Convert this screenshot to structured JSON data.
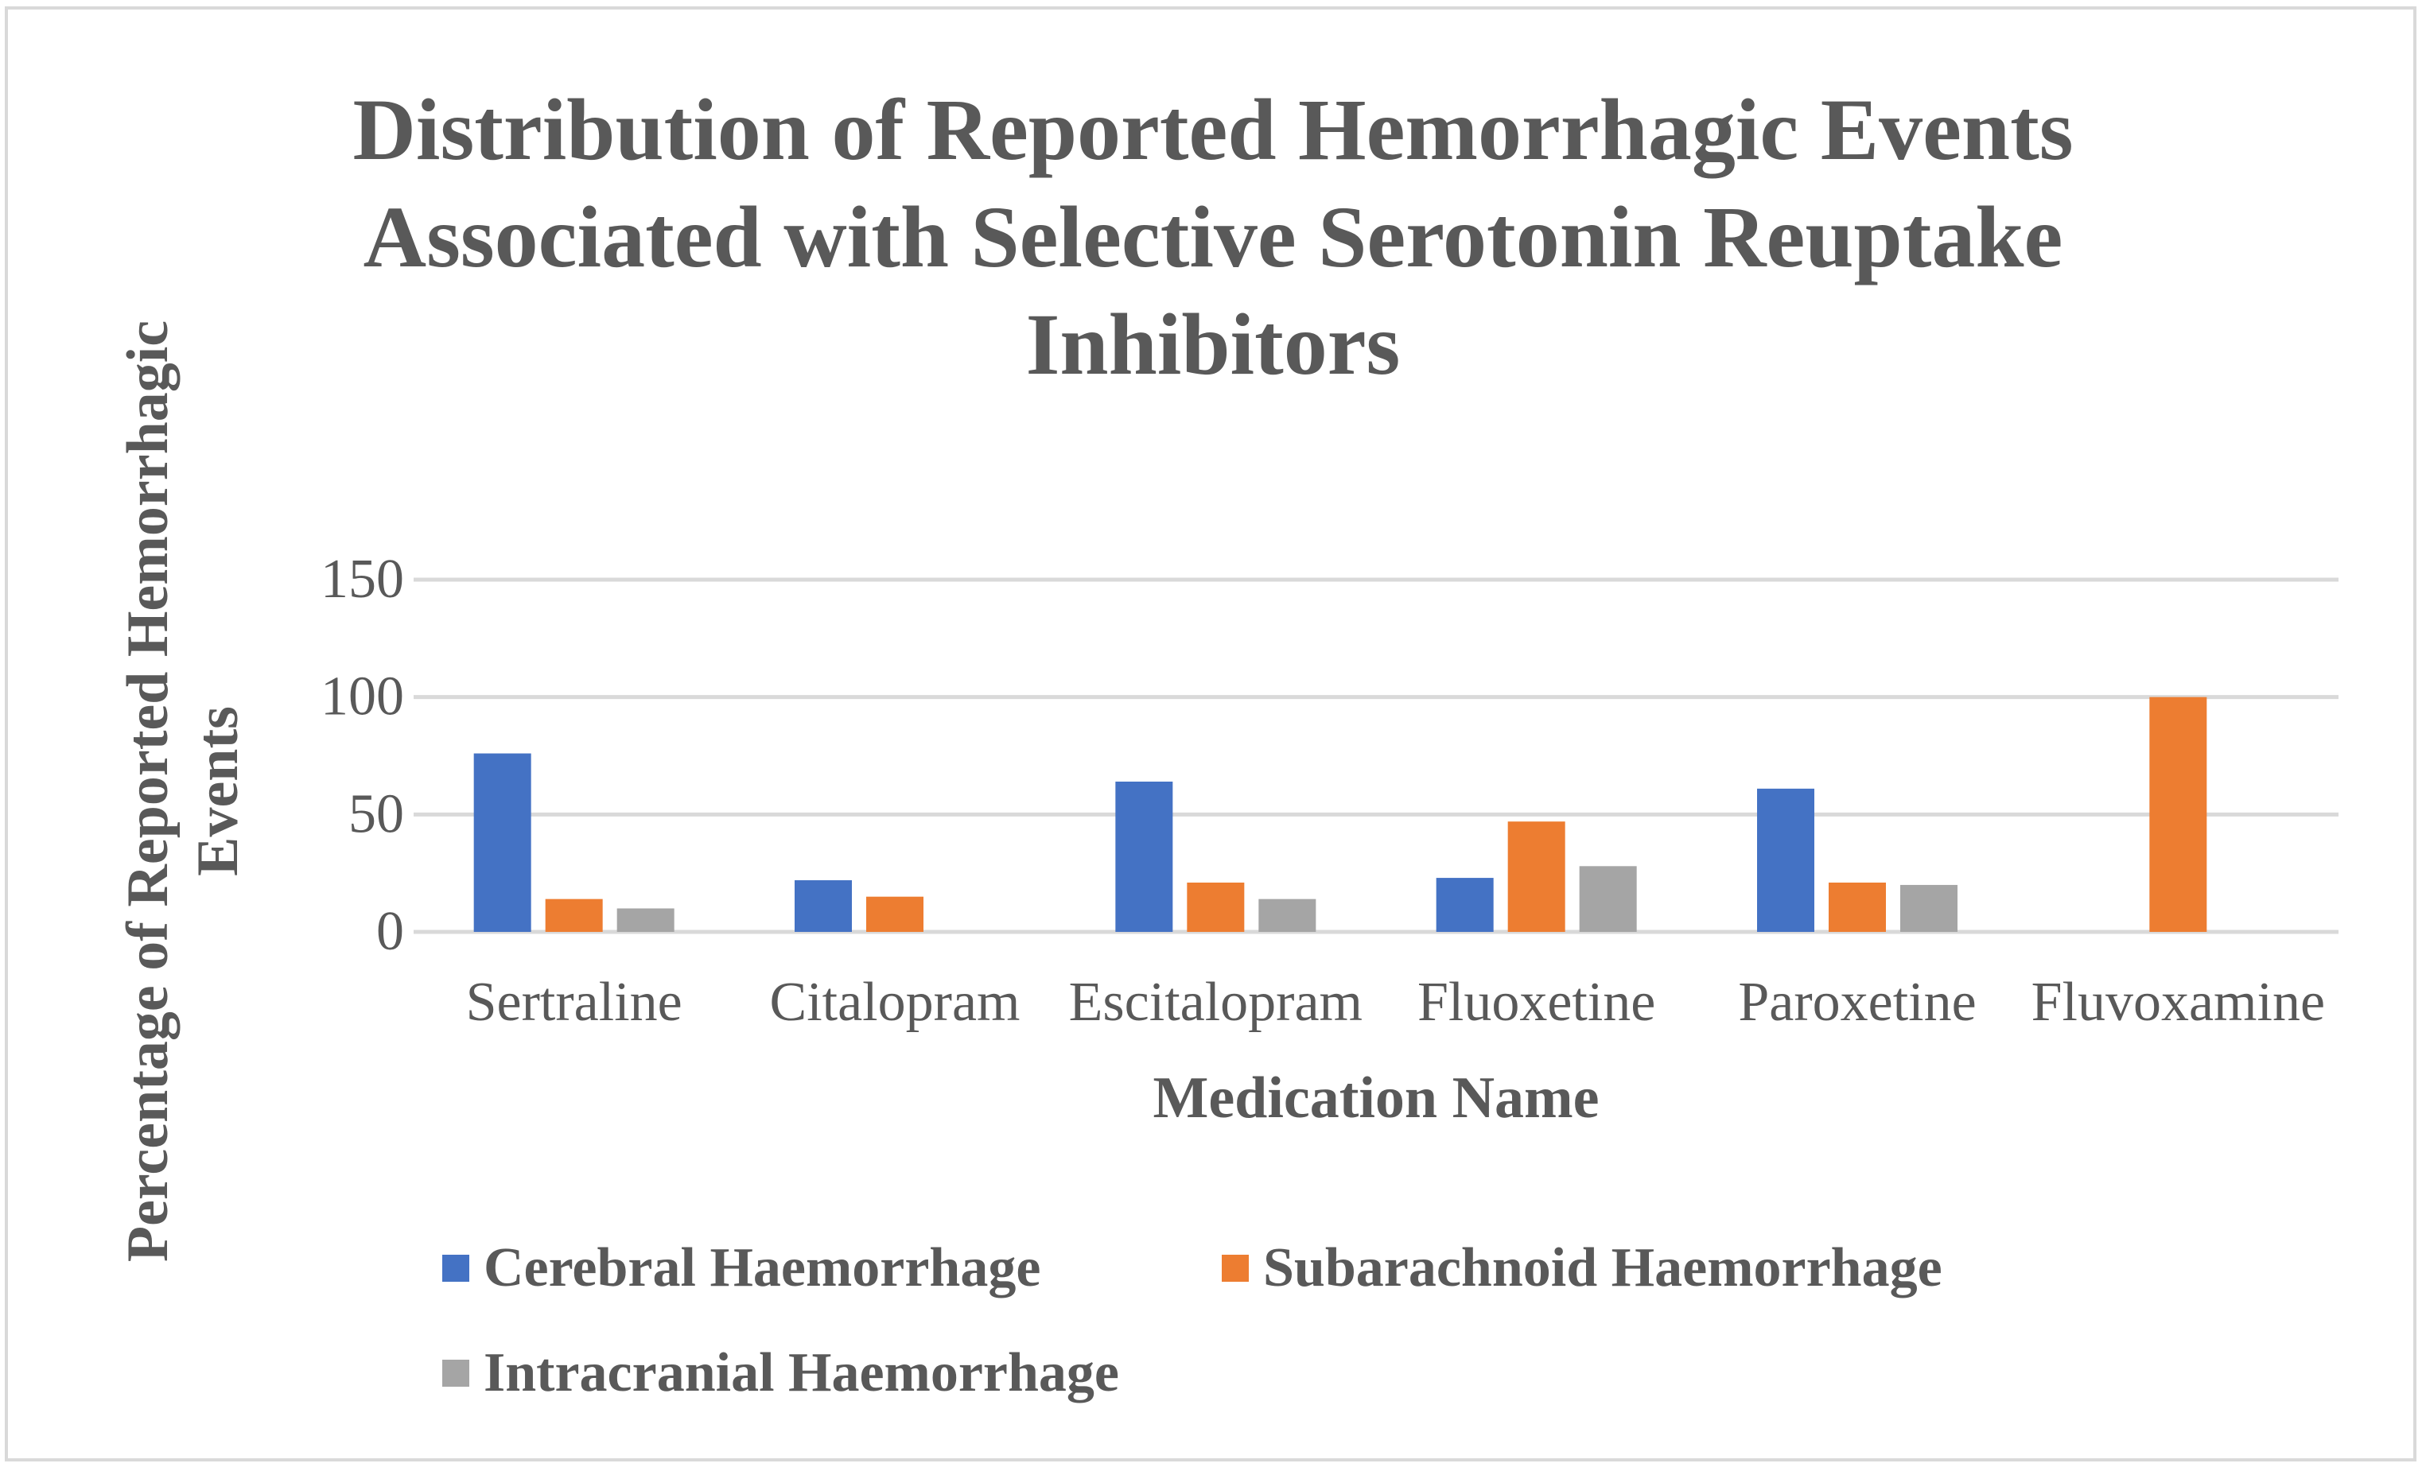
{
  "chart_data": {
    "type": "bar",
    "title": [
      "Distribution of Reported Hemorrhagic Events",
      "Associated with Selective Serotonin Reuptake",
      "Inhibitors"
    ],
    "xlabel": "Medication Name",
    "ylabel": [
      "Percentage of Reported Hemorrhagic",
      "Events"
    ],
    "categories": [
      "Sertraline",
      "Citalopram",
      "Escitalopram",
      "Fluoxetine",
      "Paroxetine",
      "Fluvoxamine"
    ],
    "ylim": [
      0,
      150
    ],
    "yticks": [
      0,
      50,
      100,
      150
    ],
    "grid": true,
    "legend_position": "bottom",
    "series": [
      {
        "name": "Cerebral Haemorrhage",
        "color": "#4472C4",
        "values": [
          76,
          22,
          64,
          23,
          61,
          0
        ]
      },
      {
        "name": "Subarachnoid Haemorrhage",
        "color": "#ED7D31",
        "values": [
          14,
          15,
          21,
          47,
          21,
          100
        ]
      },
      {
        "name": "Intracranial Haemorrhage",
        "color": "#A5A5A5",
        "values": [
          10,
          0,
          14,
          28,
          20,
          0
        ]
      }
    ]
  }
}
